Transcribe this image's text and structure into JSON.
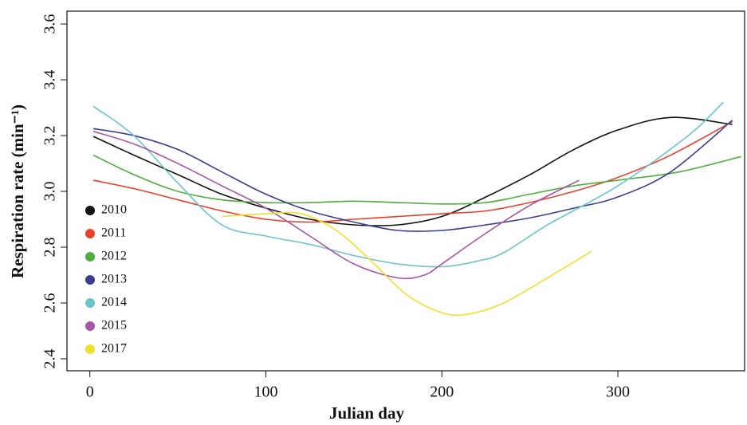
{
  "chart_data": {
    "type": "line",
    "x_label": "Julian day",
    "y_label": "Respiration rate (min⁻¹)",
    "xlim": [
      -13,
      372
    ],
    "ylim": [
      2.357,
      3.646
    ],
    "xticks": [
      0,
      100,
      200,
      300
    ],
    "yticks": [
      2.4,
      2.6,
      2.8,
      {
        "value": 3,
        "label": "3.0"
      },
      3.2,
      3.4,
      3.6
    ],
    "legend": "left",
    "series": [
      {
        "name": "2010",
        "color": "#111111",
        "x": [
          2,
          25,
          50,
          75,
          100,
          125,
          150,
          175,
          200,
          225,
          250,
          275,
          300,
          330,
          365
        ],
        "values": [
          3.197,
          3.13,
          3.06,
          2.99,
          2.94,
          2.9,
          2.88,
          2.88,
          2.91,
          2.98,
          3.06,
          3.15,
          3.22,
          3.265,
          3.24
        ]
      },
      {
        "name": "2011",
        "color": "#e8412c",
        "x": [
          2,
          25,
          50,
          75,
          100,
          125,
          150,
          175,
          200,
          225,
          250,
          275,
          300,
          330,
          365
        ],
        "values": [
          3.04,
          3.01,
          2.97,
          2.93,
          2.9,
          2.89,
          2.9,
          2.91,
          2.92,
          2.93,
          2.96,
          3.0,
          3.05,
          3.13,
          3.25
        ]
      },
      {
        "name": "2012",
        "color": "#4fae3c",
        "x": [
          2,
          25,
          50,
          75,
          100,
          125,
          150,
          175,
          200,
          225,
          250,
          275,
          300,
          335,
          370
        ],
        "values": [
          3.13,
          3.06,
          3.0,
          2.97,
          2.96,
          2.96,
          2.965,
          2.96,
          2.955,
          2.96,
          2.99,
          3.02,
          3.04,
          3.07,
          3.125
        ]
      },
      {
        "name": "2013",
        "color": "#3c3f8f",
        "x": [
          2,
          25,
          50,
          75,
          100,
          125,
          150,
          175,
          200,
          225,
          250,
          275,
          300,
          330,
          365
        ],
        "values": [
          3.225,
          3.2,
          3.15,
          3.07,
          2.99,
          2.93,
          2.89,
          2.86,
          2.86,
          2.88,
          2.905,
          2.94,
          2.98,
          3.07,
          3.255
        ]
      },
      {
        "name": "2014",
        "color": "#6cc4c8",
        "x": [
          2,
          25,
          50,
          75,
          100,
          125,
          150,
          175,
          200,
          220,
          235,
          260,
          300,
          340,
          360
        ],
        "values": [
          3.305,
          3.2,
          3.03,
          2.88,
          2.84,
          2.81,
          2.77,
          2.74,
          2.73,
          2.75,
          2.78,
          2.88,
          3.02,
          3.2,
          3.32
        ]
      },
      {
        "name": "2015",
        "color": "#a656a6",
        "x": [
          2,
          25,
          50,
          75,
          100,
          125,
          150,
          175,
          190,
          200,
          225,
          250,
          278
        ],
        "values": [
          3.215,
          3.17,
          3.1,
          3.02,
          2.94,
          2.84,
          2.74,
          2.69,
          2.7,
          2.74,
          2.85,
          2.95,
          3.04
        ]
      },
      {
        "name": "2017",
        "color": "#f0e030",
        "x": [
          75,
          100,
          120,
          140,
          160,
          180,
          200,
          215,
          235,
          260,
          285
        ],
        "values": [
          2.91,
          2.92,
          2.92,
          2.86,
          2.75,
          2.63,
          2.565,
          2.56,
          2.6,
          2.69,
          2.785
        ]
      }
    ]
  }
}
